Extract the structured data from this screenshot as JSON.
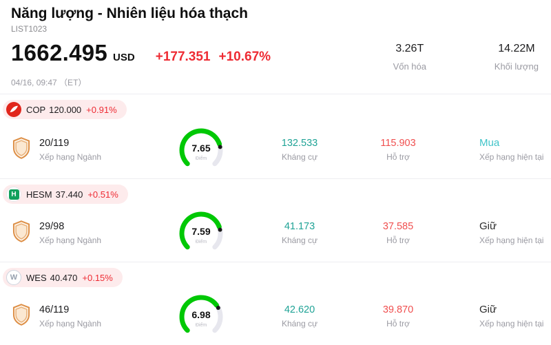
{
  "header": {
    "title": "Năng lượng - Nhiên liệu hóa thạch",
    "list_code": "LIST1023",
    "price": "1662.495",
    "currency": "USD",
    "change_abs": "+177.351",
    "change_pct": "+10.67%",
    "datetime": "04/16, 09:47 （ET）",
    "market_cap": {
      "value": "3.26T",
      "label": "Vốn hóa"
    },
    "volume": {
      "value": "14.22M",
      "label": "Khối lượng"
    }
  },
  "labels": {
    "rank": "Xếp hạng Ngành",
    "score": "Điểm",
    "resistance": "Kháng cự",
    "support": "Hỗ trợ",
    "rating": "Xếp hạng hiện tại"
  },
  "colors": {
    "up_red": "#ee2b33",
    "resistance_teal": "#1fa396",
    "support_red": "#f04f4f",
    "gauge_green": "#00c805",
    "gauge_track": "#e7e7ee",
    "gauge_dot": "#1a1a1a"
  },
  "stocks": [
    {
      "ticker": "COP",
      "price": "120.000",
      "change": "+0.91%",
      "rank": "20/119",
      "score": "7.65",
      "resistance": "132.533",
      "support": "115.903",
      "rating": "Mua",
      "rating_color": "#40c4c9",
      "logo_text": ""
    },
    {
      "ticker": "HESM",
      "price": "37.440",
      "change": "+0.51%",
      "rank": "29/98",
      "score": "7.59",
      "resistance": "41.173",
      "support": "37.585",
      "rating": "Giữ",
      "rating_color": "#2b2b2b",
      "logo_text": "H"
    },
    {
      "ticker": "WES",
      "price": "40.470",
      "change": "+0.15%",
      "rank": "46/119",
      "score": "6.98",
      "resistance": "42.620",
      "support": "39.870",
      "rating": "Giữ",
      "rating_color": "#2b2b2b",
      "logo_text": "W"
    }
  ]
}
